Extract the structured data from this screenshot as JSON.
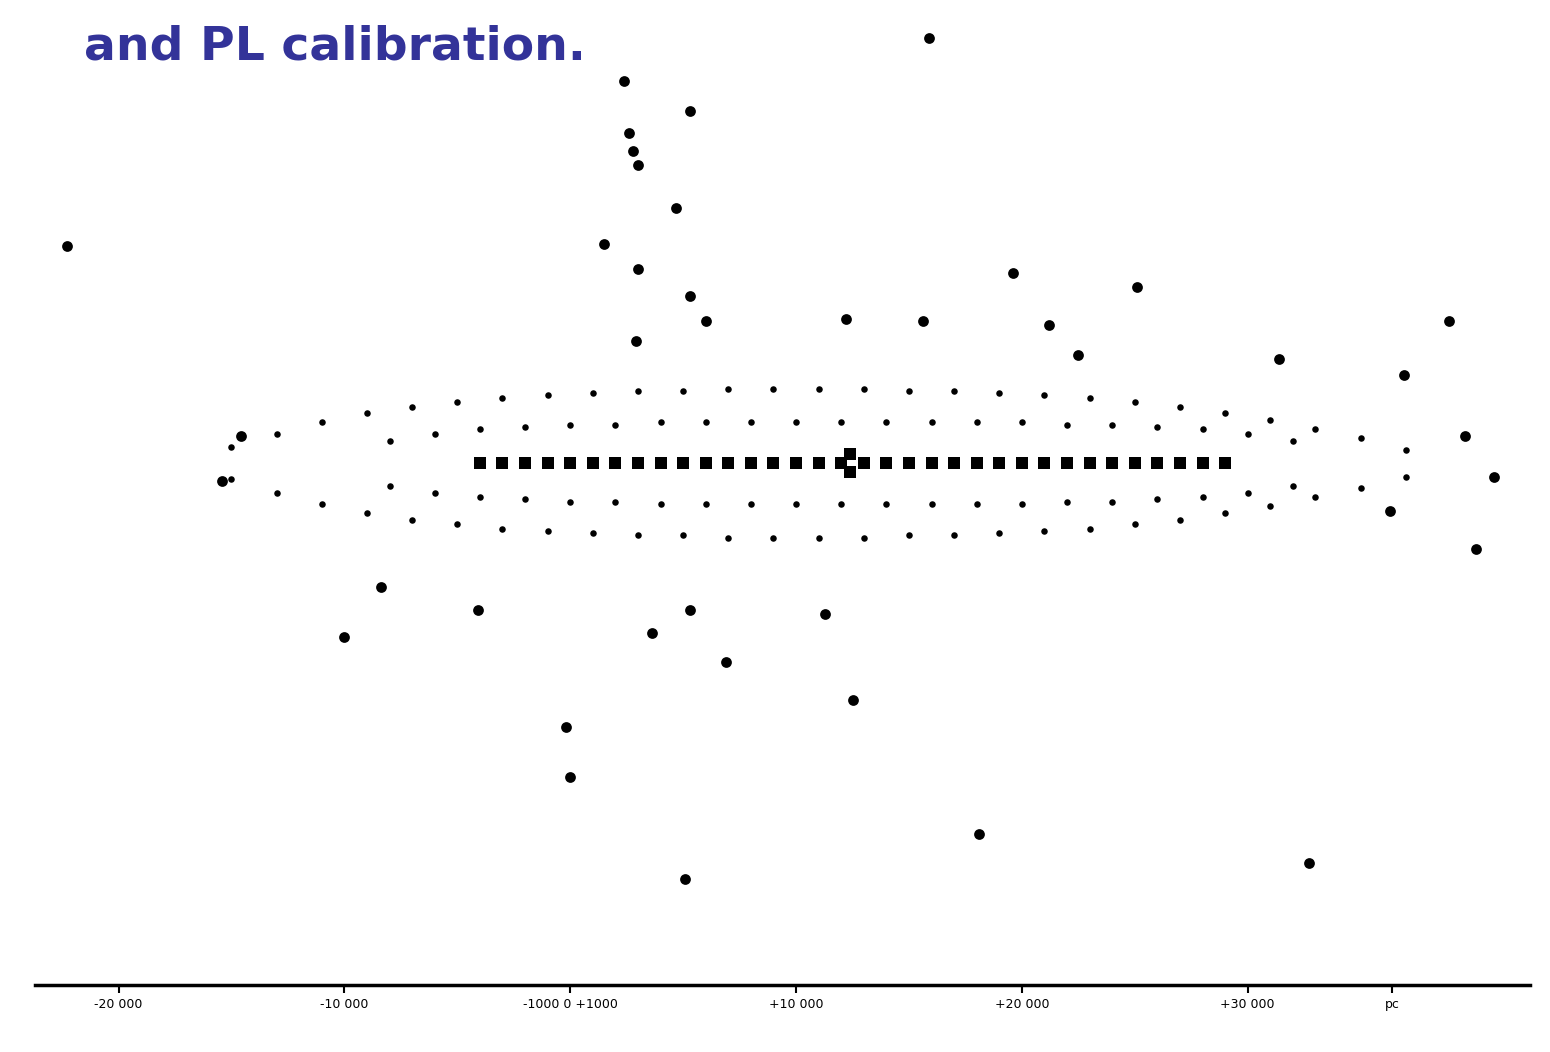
{
  "chart_data": {
    "type": "scatter",
    "title": "and PL calibration.",
    "xlim": [
      -23700,
      42500
    ],
    "ylim": [
      -23100,
      20500
    ],
    "xticks": [
      {
        "value": -20000,
        "label": "-20 000"
      },
      {
        "value": -10000,
        "label": "-10 000"
      },
      {
        "value": 0,
        "label": "-1000 0 +1000"
      },
      {
        "value": 10000,
        "label": "+10 000"
      },
      {
        "value": 20000,
        "label": "+20 000"
      },
      {
        "value": 30000,
        "label": "+30 000"
      },
      {
        "value": 36400,
        "label": "pc"
      }
    ],
    "tick_labels": "x",
    "grid": false,
    "series": [
      {
        "color": "#000000",
        "marker": "o",
        "x": [
          15900,
          5300,
          2400,
          2600,
          2800,
          3000,
          4700,
          1500,
          3000,
          5300,
          2900,
          -22300,
          19600,
          25100,
          12200,
          15600,
          21200,
          22500,
          31400,
          36900,
          38900,
          6000,
          -8400,
          -4100,
          -10000,
          3600,
          5300,
          6900,
          11300,
          12500,
          -200,
          0,
          5100,
          18100,
          32700,
          40100,
          -15400,
          -14600,
          36300,
          39600,
          40900
        ],
        "values": [
          18800,
          15600,
          16900,
          14600,
          13800,
          13200,
          11300,
          9700,
          8600,
          7400,
          5400,
          9600,
          8400,
          7800,
          6400,
          6300,
          6100,
          4800,
          4600,
          3900,
          6300,
          6300,
          -5500,
          -6500,
          -7700,
          -7500,
          -6500,
          -8800,
          -6700,
          -10500,
          -11700,
          -13900,
          -18400,
          -16400,
          -17700,
          -3800,
          -800,
          1200,
          -2100,
          1200,
          -600
        ]
      },
      {
        "color": "#000000",
        "marker": "o",
        "x": [
          -15000,
          -13000,
          -11000,
          -9000,
          -7000,
          -5000,
          -3000,
          -1000,
          1000,
          3000,
          5000,
          7000,
          9000,
          11000,
          13000,
          15000,
          17000,
          19000,
          21000,
          23000,
          25000,
          27000,
          29000,
          31000,
          33000,
          35000,
          37000,
          -15000,
          -13000,
          -11000,
          -9000,
          -7000,
          -5000,
          -3000,
          -1000,
          1000,
          3000,
          5000,
          7000,
          9000,
          11000,
          13000,
          15000,
          17000,
          19000,
          21000,
          23000,
          25000,
          27000,
          29000,
          31000,
          33000,
          35000,
          37000,
          -8000,
          -6000,
          -4000,
          -2000,
          0,
          2000,
          4000,
          6000,
          8000,
          10000,
          12000,
          14000,
          16000,
          18000,
          20000,
          22000,
          24000,
          26000,
          28000,
          30000,
          32000,
          -8000,
          -6000,
          -4000,
          -2000,
          0,
          2000,
          4000,
          6000,
          8000,
          10000,
          12000,
          14000,
          16000,
          18000,
          20000,
          22000,
          24000,
          26000,
          28000,
          30000,
          32000
        ],
        "values": [
          700,
          1300,
          1800,
          2200,
          2500,
          2700,
          2900,
          3000,
          3100,
          3200,
          3200,
          3300,
          3300,
          3300,
          3300,
          3200,
          3200,
          3100,
          3000,
          2900,
          2700,
          2500,
          2200,
          1900,
          1500,
          1100,
          600,
          -700,
          -1300,
          -1800,
          -2200,
          -2500,
          -2700,
          -2900,
          -3000,
          -3100,
          -3200,
          -3200,
          -3300,
          -3300,
          -3300,
          -3300,
          -3200,
          -3200,
          -3100,
          -3000,
          -2900,
          -2700,
          -2500,
          -2200,
          -1900,
          -1500,
          -1100,
          -600,
          1000,
          1300,
          1500,
          1600,
          1700,
          1700,
          1800,
          1800,
          1800,
          1800,
          1800,
          1800,
          1800,
          1800,
          1800,
          1700,
          1700,
          1600,
          1500,
          1300,
          1000,
          -1000,
          -1300,
          -1500,
          -1600,
          -1700,
          -1700,
          -1800,
          -1800,
          -1800,
          -1800,
          -1800,
          -1800,
          -1800,
          -1800,
          -1800,
          -1700,
          -1700,
          -1600,
          -1500,
          -1300,
          -1000
        ]
      },
      {
        "color": "#000000",
        "marker": "s",
        "x": [
          -4000,
          -3000,
          -2000,
          -1000,
          0,
          1000,
          2000,
          3000,
          4000,
          5000,
          6000,
          7000,
          8000,
          9000,
          10000,
          11000,
          12000,
          12400,
          12400,
          13000,
          14000,
          15000,
          16000,
          17000,
          18000,
          19000,
          20000,
          21000,
          22000,
          23000,
          24000,
          25000,
          26000,
          27000,
          28000,
          29000
        ],
        "values": [
          0,
          0,
          0,
          0,
          0,
          0,
          0,
          0,
          0,
          0,
          0,
          0,
          0,
          0,
          0,
          0,
          0,
          400,
          -400,
          0,
          0,
          0,
          0,
          0,
          0,
          0,
          0,
          0,
          0,
          0,
          0,
          0,
          0,
          0,
          0,
          0
        ]
      }
    ]
  }
}
